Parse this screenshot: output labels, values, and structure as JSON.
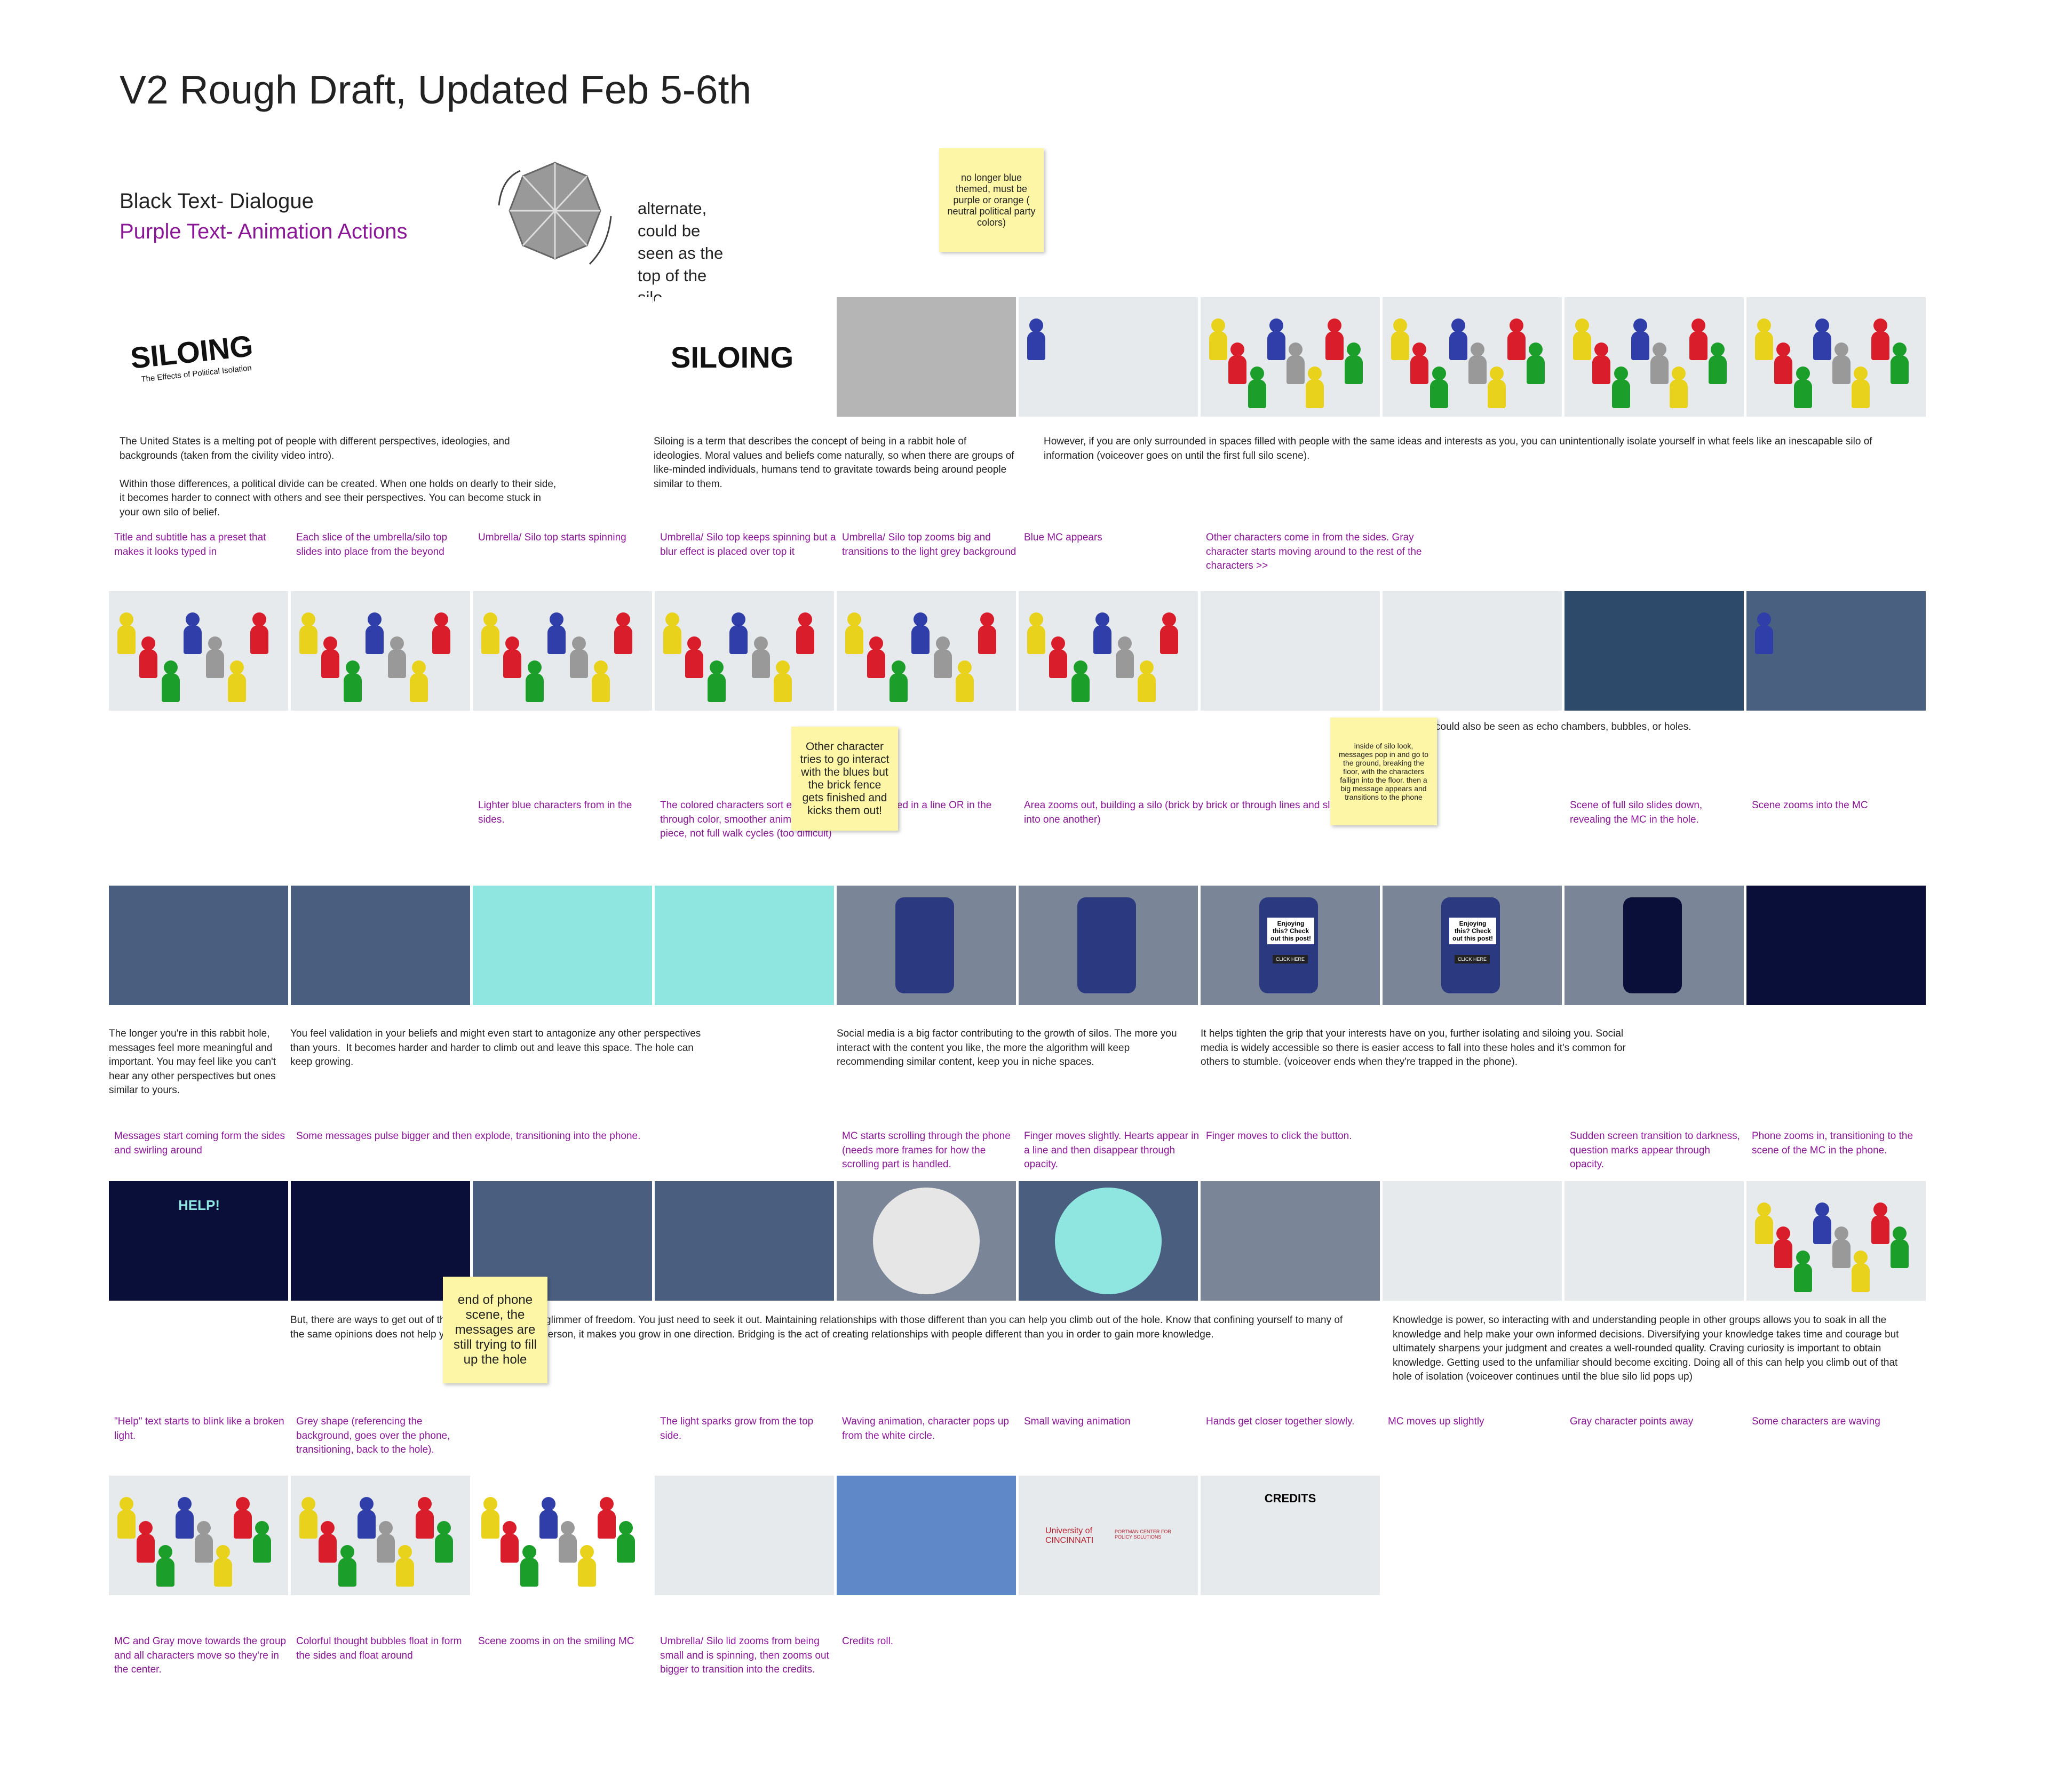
{
  "header": {
    "title": "V2 Rough Draft, Updated Feb 5-6th"
  },
  "legend": {
    "dialogue": "Black Text- Dialogue",
    "actions": "Purple Text- Animation Actions"
  },
  "umbrella_note": "alternate, could be seen as the top of the silo",
  "sticky_notes": [
    "no longer blue themed, must be purple or orange ( neutral  political party colors)",
    "Other character tries to go interact with the blues but the brick fence gets finished and kicks them out!",
    "inside of silo look, messages pop in and go to the ground, breaking the floor, with the characters fallign into the floor. then a big message appears and transitions to the phone",
    "end of phone scene, the messages are still trying to fill up the hole"
  ],
  "frame_texts": {
    "siloing": "SILOING",
    "subtitle": "The Effects of Political Isolation",
    "siloing_blur": "SILOING",
    "help": "HELP!",
    "post": "Enjoying this? Check out this post!",
    "click": "CLICK HERE",
    "credits": "CREDITS",
    "university": "University of CINCINNATI",
    "center": "PORTMAN CENTER FOR POLICY SOLUTIONS"
  },
  "rows": [
    {
      "dialogue": [
        "The United States is a melting pot of people with different perspectives, ideologies, and backgrounds (taken from the civility video intro).\n\nWithin those differences, a political divide can be created. When one holds on dearly to their side, it becomes harder to connect with others and see their perspectives. You can become stuck in your own silo of belief.",
        "Siloing is a term that describes the concept of being in a rabbit hole of ideologies. Moral values and beliefs come naturally, so when there are groups of like-minded individuals, humans tend to gravitate towards being around people similar to them.",
        "However, if you are only surrounded in spaces filled with people with the same ideas and interests as you, you can unintentionally isolate yourself in what feels like an inescapable silo of information (voiceover goes on until the first full silo scene)."
      ],
      "captions": [
        "Title and subtitle has a preset that makes it looks typed in",
        "Each slice of the umbrella/silo top slides into place from the beyond",
        "Umbrella/ Silo top starts spinning",
        "Umbrella/ Silo top keeps spinning but a blur effect is placed over top it",
        "Umbrella/ Silo top zooms big and transitions to the light grey background",
        "Blue MC appears",
        "Other characters come in from the sides.  Gray character starts moving around to the rest of the characters >>"
      ]
    },
    {
      "dialogue": [
        "could also be seen as echo chambers, bubbles, or holes."
      ],
      "captions": [
        "Lighter blue characters from in the sides.",
        "The colored characters sort each other through color, smoother animation piece, not full walk cycles (too difficult)",
        "They're placed in a line  OR in the middle.",
        "Area zooms out, building a silo (brick by brick or through lines and sliding into one another)",
        "Scene of full silo slides down, revealing the MC in the hole.",
        "Scene zooms into the MC"
      ]
    },
    {
      "dialogue": [
        "The longer you're in this rabbit hole, messages feel more meaningful and important. You may feel like you can't hear any other perspectives but ones similar to yours.",
        "You feel validation in your beliefs and might even start to antagonize any other perspectives than yours.  It becomes harder and harder to climb out and leave this space. The hole can keep growing.",
        "Social media is a big factor contributing to the growth of silos. The more you interact with the content you like, the more the algorithm will keep recommending similar content, keep you in niche spaces.",
        "It helps tighten the grip that your interests have on you, further isolating and siloing you. Social media is widely accessible so there is easier access to fall into these holes and it's common for others to stumble. (voiceover ends when they're trapped in the phone)."
      ],
      "captions": [
        "Messages start coming form the sides and swirling around",
        "Some messages pulse bigger and then explode, transitioning into the phone.",
        "MC starts scrolling through the phone (needs more frames for how the scrolling part is handled.",
        "Finger moves slightly. Hearts appear in a line and then disappear through opacity.",
        "Finger moves to click the button.",
        "Sudden screen transition to darkness, question marks appear through opacity.",
        "Phone zooms in, transitioning to the scene of the MC in the phone."
      ]
    },
    {
      "dialogue": [
        "But, there are ways to get out of this hole. There is still a glimmer of freedom. You just need to seek it out. Maintaining relationships with those different than you can help you climb out of the hole. Know that confining yourself to many of the same opinions does not help you to grow more as a person, it makes you grow in one direction. Bridging is the act of creating relationships with people different than you in order to gain more knowledge.",
        "Knowledge is power, so interacting with and understanding people in other groups allows you to soak in all the knowledge and help make your own informed decisions. Diversifying your knowledge takes time and courage but ultimately sharpens your judgment and creates a well-rounded quality. Craving curiosity is important to obtain knowledge. Getting used to the unfamiliar should become exciting. Doing all of this can help you climb out of that hole of isolation (voiceover continues until the blue silo lid pops up)"
      ],
      "captions": [
        "\"Help\" text starts to blink like a broken light.",
        "Grey shape (referencing the background, goes over the phone, transitioning, back to the hole).",
        "The light sparks grow from the top side.",
        "Waving animation, character pops up from the white circle.",
        "Small waving animation",
        "Hands get closer together slowly.",
        "MC moves up slightly",
        "Gray character points away",
        "Some characters are waving"
      ]
    },
    {
      "dialogue": [],
      "captions": [
        "MC and Gray move towards the group and all characters move so they're in the center.",
        "Colorful thought bubbles float in form the sides and float around",
        "Scene zooms in on the smiling MC",
        "Umbrella/ Silo lid zooms from being small and is spinning, then zooms out bigger to transition into the credits.",
        "Credits roll."
      ]
    }
  ]
}
